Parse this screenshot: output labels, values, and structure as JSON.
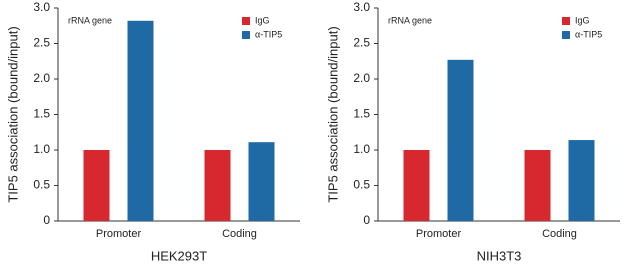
{
  "chart_data": [
    {
      "type": "bar",
      "annotation": "rRNA gene",
      "ylabel": "TIP5 association (bound/input)",
      "xlabel": "HEK293T",
      "categories": [
        "Promoter",
        "Coding"
      ],
      "series": [
        {
          "name": "IgG",
          "color": "#d7282f",
          "values": [
            1.0,
            1.0
          ]
        },
        {
          "name": "α-TIP5",
          "color": "#1f6aa5",
          "values": [
            2.82,
            1.11
          ]
        }
      ],
      "ylim": [
        0,
        3
      ],
      "yticks": [
        0,
        0.5,
        {
          "value": 1,
          "label": "1.0"
        },
        1.5,
        {
          "value": 2,
          "label": "2.0"
        },
        2.5,
        {
          "value": 3,
          "label": "3.0"
        }
      ]
    },
    {
      "type": "bar",
      "annotation": "rRNA gene",
      "ylabel": "TIP5 association (bound/input)",
      "xlabel": "NIH3T3",
      "categories": [
        "Promoter",
        "Coding"
      ],
      "series": [
        {
          "name": "IgG",
          "color": "#d7282f",
          "values": [
            1.0,
            1.0
          ]
        },
        {
          "name": "α-TIP5",
          "color": "#1f6aa5",
          "values": [
            2.27,
            1.14
          ]
        }
      ],
      "ylim": [
        0,
        3
      ],
      "yticks": [
        0,
        0.5,
        {
          "value": 1,
          "label": "1.0"
        },
        1.5,
        {
          "value": 2,
          "label": "2.0"
        },
        2.5,
        {
          "value": 3,
          "label": "3.0"
        }
      ]
    }
  ]
}
